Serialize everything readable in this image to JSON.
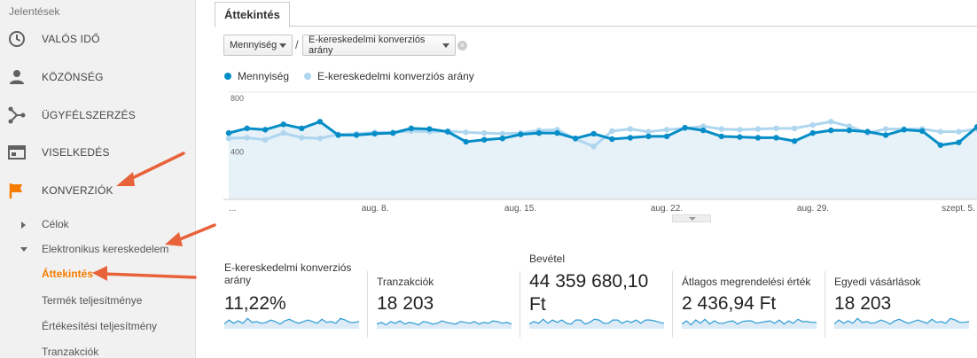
{
  "sidebar": {
    "header": "Jelentések",
    "items": [
      {
        "label": "VALÓS IDŐ",
        "icon": "clock-icon"
      },
      {
        "label": "KÖZÖNSÉG",
        "icon": "person-icon"
      },
      {
        "label": "ÜGYFÉLSZERZÉS",
        "icon": "acquisition-icon"
      },
      {
        "label": "VISELKEDÉS",
        "icon": "behavior-icon"
      },
      {
        "label": "KONVERZIÓK",
        "icon": "flag-icon"
      }
    ],
    "subitems": {
      "celok": "Célok",
      "ecommerce": "Elektronikus kereskedelem",
      "attekintes": "Áttekintés",
      "termek": "Termék teljesítménye",
      "ertekesitesi": "Értékesítési teljesítmény",
      "tranzakciok": "Tranzakciók"
    },
    "active_color": "#f57c00",
    "arrow_color": "#e8623a"
  },
  "tab": {
    "label": "Áttekintés"
  },
  "metric_selector": {
    "primary": "Mennyiség",
    "separator": "/",
    "secondary": "E-kereskedelmi konverziós arány"
  },
  "legend": {
    "primary": "Mennyiség",
    "secondary": "E-kereskedelmi konverziós arány"
  },
  "chart_data": {
    "type": "line",
    "y_ticks": [
      "800",
      "400"
    ],
    "ylim": [
      0,
      800
    ],
    "x_labels": [
      "...",
      "aug. 8.",
      "aug. 15.",
      "aug. 22.",
      "aug. 29.",
      "szept. 5."
    ],
    "series": [
      {
        "name": "Mennyiség",
        "color": "#058dc7",
        "values": [
          495,
          530,
          520,
          560,
          530,
          580,
          480,
          480,
          490,
          495,
          530,
          525,
          505,
          430,
          445,
          455,
          485,
          495,
          495,
          455,
          490,
          450,
          460,
          470,
          470,
          535,
          515,
          470,
          465,
          460,
          460,
          435,
          495,
          515,
          515,
          505,
          480,
          520,
          510,
          405,
          425,
          540
        ]
      },
      {
        "name": "E-kereskedelmi konverziós arány",
        "color": "#aed6ef",
        "values": [
          455,
          460,
          445,
          495,
          460,
          455,
          485,
          490,
          500,
          500,
          510,
          505,
          510,
          500,
          495,
          490,
          495,
          515,
          520,
          450,
          395,
          510,
          525,
          505,
          520,
          530,
          545,
          525,
          520,
          525,
          530,
          530,
          555,
          580,
          545,
          495,
          525,
          525,
          525,
          505,
          505,
          525
        ]
      }
    ]
  },
  "scorecards": [
    {
      "label": "E-kereskedelmi konverziós arány",
      "value": "11,22%"
    },
    {
      "label": "Tranzakciók",
      "value": "18 203"
    },
    {
      "label": "Bevétel",
      "value": "44 359 680,10 Ft"
    },
    {
      "label": "Átlagos megrendelési érték",
      "value": "2 436,94 Ft"
    },
    {
      "label": "Egyedi vásárlások",
      "value": "18 203"
    }
  ]
}
